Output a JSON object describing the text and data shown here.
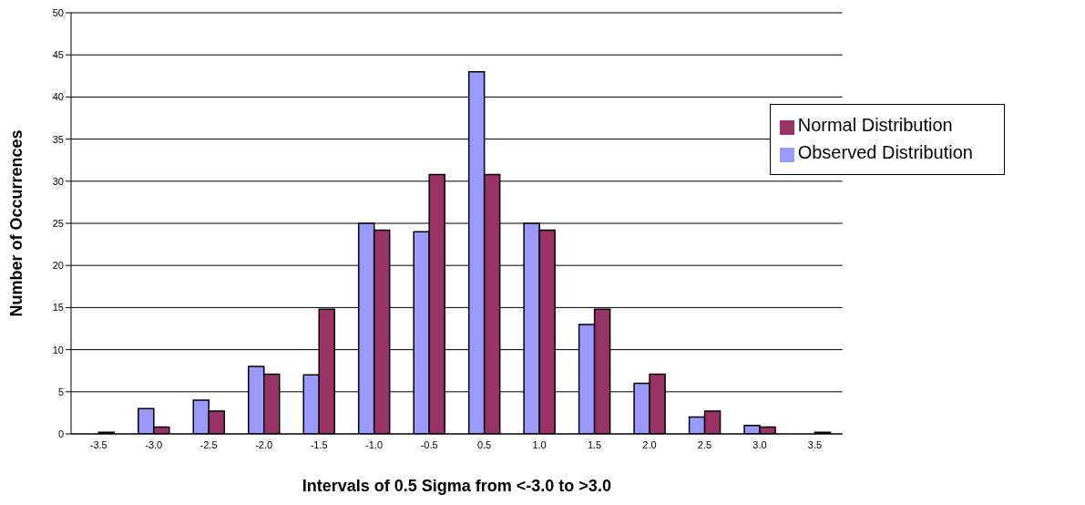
{
  "chart_data": {
    "type": "bar",
    "xlabel": "Intervals of 0.5 Sigma from <-3.0 to >3.0",
    "ylabel": "Number of Occurrences",
    "categories": [
      "-3.5",
      "-3.0",
      "-2.5",
      "-2.0",
      "-1.5",
      "-1.0",
      "-0.5",
      "0.5",
      "1.0",
      "1.5",
      "2.0",
      "2.5",
      "3.0",
      "3.5"
    ],
    "series": [
      {
        "name": "Observed Distribution",
        "color": "#9999ff",
        "values": [
          0,
          3,
          4,
          8,
          7,
          25,
          24,
          43,
          25,
          13,
          6,
          2,
          1,
          0
        ]
      },
      {
        "name": "Normal Distribution",
        "color": "#993366",
        "values": [
          0.2,
          0.8,
          2.7,
          7.1,
          14.8,
          24.2,
          30.8,
          30.8,
          24.2,
          14.8,
          7.1,
          2.7,
          0.8,
          0.2
        ]
      }
    ],
    "ylim": [
      0,
      50
    ],
    "yticks": [
      0,
      5,
      10,
      15,
      20,
      25,
      30,
      35,
      40,
      45,
      50
    ],
    "grid": "y",
    "legend": "top right"
  }
}
